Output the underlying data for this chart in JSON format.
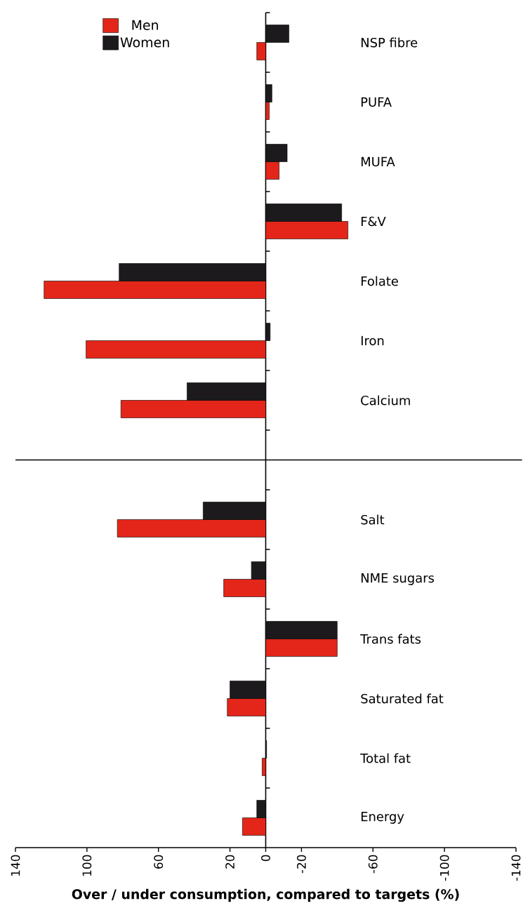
{
  "chart_data": {
    "type": "bar",
    "orientation": "horizontal",
    "xlabel": "Over / under consumption, compared to targets (%)",
    "categories": [
      "NSP fibre",
      "PUFA",
      "MUFA",
      "F&V",
      "Folate",
      "Iron",
      "Calcium",
      null,
      "Salt",
      "NME sugars",
      "Trans fats",
      "Saturated fat",
      "Total fat",
      "Energy"
    ],
    "series": [
      {
        "name": "Men",
        "color": "#e32619",
        "values": [
          5,
          -2,
          -7.5,
          -46,
          124,
          100.5,
          81,
          null,
          83,
          23.5,
          -40,
          21.5,
          2,
          13
        ]
      },
      {
        "name": "Women",
        "color": "#1c1a1d",
        "values": [
          -13,
          -3.5,
          -12,
          -42.5,
          82,
          -2.5,
          44,
          null,
          35,
          8,
          -40,
          20,
          -0.5,
          5
        ]
      }
    ],
    "xlim": [
      140,
      -140
    ],
    "xticks": [
      140,
      100,
      60,
      20,
      0,
      -20,
      -60,
      -100,
      -140
    ],
    "legend": "top left"
  }
}
